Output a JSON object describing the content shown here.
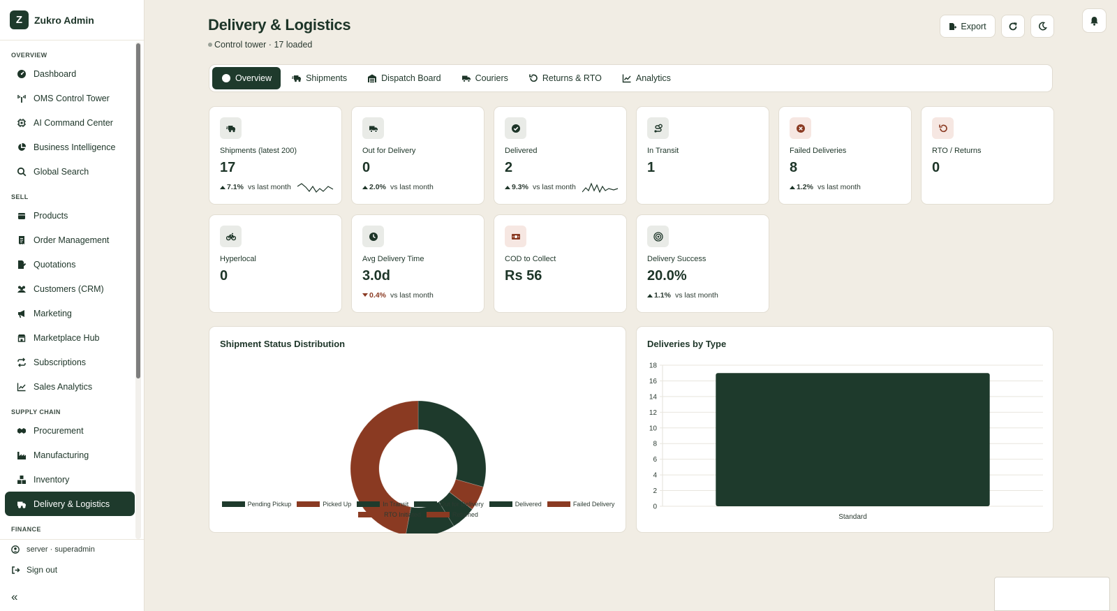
{
  "app": {
    "name": "Zukro Admin",
    "logo_letter": "Z"
  },
  "sidebar": {
    "sections": [
      {
        "title": "OVERVIEW",
        "items": [
          {
            "label": "Dashboard",
            "icon": "gauge-icon"
          },
          {
            "label": "OMS Control Tower",
            "icon": "tower-icon"
          },
          {
            "label": "AI Command Center",
            "icon": "chip-icon"
          },
          {
            "label": "Business Intelligence",
            "icon": "pie-icon"
          },
          {
            "label": "Global Search",
            "icon": "search-icon"
          }
        ]
      },
      {
        "title": "SELL",
        "items": [
          {
            "label": "Products",
            "icon": "box-icon"
          },
          {
            "label": "Order Management",
            "icon": "receipt-icon"
          },
          {
            "label": "Quotations",
            "icon": "file-pen-icon"
          },
          {
            "label": "Customers (CRM)",
            "icon": "users-icon"
          },
          {
            "label": "Marketing",
            "icon": "megaphone-icon"
          },
          {
            "label": "Marketplace Hub",
            "icon": "store-icon"
          },
          {
            "label": "Subscriptions",
            "icon": "repeat-icon"
          },
          {
            "label": "Sales Analytics",
            "icon": "chart-line-icon"
          }
        ]
      },
      {
        "title": "SUPPLY CHAIN",
        "items": [
          {
            "label": "Procurement",
            "icon": "handshake-icon"
          },
          {
            "label": "Manufacturing",
            "icon": "factory-icon"
          },
          {
            "label": "Inventory",
            "icon": "boxes-icon"
          },
          {
            "label": "Delivery & Logistics",
            "icon": "truck-icon",
            "active": true
          }
        ]
      },
      {
        "title": "FINANCE",
        "items": []
      }
    ],
    "user": "server · superadmin",
    "signout": "Sign out",
    "collapse_icon": "«"
  },
  "header": {
    "title": "Delivery & Logistics",
    "subtitle": "Control tower · 17 loaded",
    "export_label": "Export"
  },
  "tabs": [
    {
      "label": "Overview",
      "icon": "gauge-icon",
      "active": true
    },
    {
      "label": "Shipments",
      "icon": "truck-fast-icon"
    },
    {
      "label": "Dispatch Board",
      "icon": "warehouse-icon"
    },
    {
      "label": "Couriers",
      "icon": "truck-icon"
    },
    {
      "label": "Returns & RTO",
      "icon": "rotate-left-icon"
    },
    {
      "label": "Analytics",
      "icon": "chart-line-icon"
    }
  ],
  "kpis": [
    {
      "label": "Shipments (latest 200)",
      "value": "17",
      "trend": "7.1%",
      "dir": "up",
      "note": "vs last month",
      "icon": "truck-fast-icon",
      "spark": true
    },
    {
      "label": "Out for Delivery",
      "value": "0",
      "trend": "2.0%",
      "dir": "up",
      "note": "vs last month",
      "icon": "truck-icon"
    },
    {
      "label": "Delivered",
      "value": "2",
      "trend": "9.3%",
      "dir": "up",
      "note": "vs last month",
      "icon": "check-circle-icon",
      "spark": true
    },
    {
      "label": "In Transit",
      "value": "1",
      "icon": "route-icon"
    },
    {
      "label": "Failed Deliveries",
      "value": "8",
      "trend": "1.2%",
      "dir": "up",
      "note": "vs last month",
      "icon": "x-circle-icon",
      "red": true
    },
    {
      "label": "RTO / Returns",
      "value": "0",
      "icon": "rotate-left-icon",
      "red": true
    },
    {
      "label": "Hyperlocal",
      "value": "0",
      "icon": "bicycle-icon"
    },
    {
      "label": "Avg Delivery Time",
      "value": "3.0d",
      "trend": "0.4%",
      "dir": "down",
      "note": "vs last month",
      "icon": "clock-icon"
    },
    {
      "label": "COD to Collect",
      "value": "Rs 56",
      "icon": "money-icon",
      "red": true
    },
    {
      "label": "Delivery Success",
      "value": "20.0%",
      "trend": "1.1%",
      "dir": "up",
      "note": "vs last month",
      "icon": "target-icon"
    }
  ],
  "colors": {
    "green": "#1e3a2c",
    "rust": "#8a3a22"
  },
  "chart_data": [
    {
      "type": "pie",
      "title": "Shipment Status Distribution",
      "donut": true,
      "categories": [
        "Pending Pickup",
        "Picked Up",
        "In Transit",
        "Out for Delivery",
        "Delivered",
        "Failed Delivery",
        "RTO Initiated",
        "Returned"
      ],
      "values": [
        5,
        1,
        1,
        0,
        2,
        8,
        0,
        0
      ],
      "colors": [
        "#1e3a2c",
        "#8a3a22",
        "#1e3a2c",
        "#1e3a2c",
        "#1e3a2c",
        "#8a3a22",
        "#8a3a22",
        "#8a3a22"
      ],
      "legend": "bottom"
    },
    {
      "type": "bar",
      "title": "Deliveries by Type",
      "categories": [
        "Standard"
      ],
      "values": [
        17
      ],
      "ylim": [
        0,
        18
      ],
      "yticks": [
        0,
        2,
        4,
        6,
        8,
        10,
        12,
        14,
        16,
        18
      ],
      "grid": true,
      "color": "#1e3a2c"
    }
  ]
}
